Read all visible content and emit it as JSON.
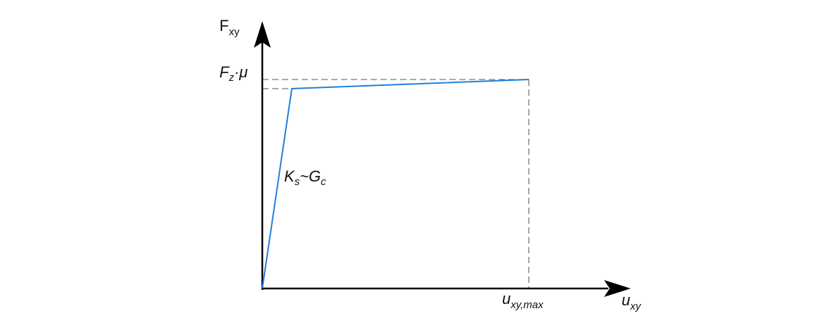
{
  "axes": {
    "y_label": {
      "main": "F",
      "sub": "xy"
    },
    "x_label": {
      "main": "u",
      "sub": "xy"
    }
  },
  "annotations": {
    "force_limit": {
      "main": "F",
      "sub": "z",
      "rest": "·μ"
    },
    "stiffness": {
      "main": "K",
      "sub": "s",
      "mid": "~G",
      "sub2": "c"
    },
    "displacement_limit": {
      "main": "u",
      "sub": "xy,max"
    }
  }
}
